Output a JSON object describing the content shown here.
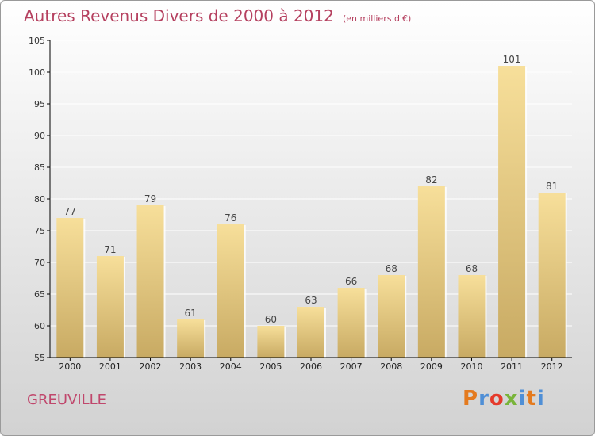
{
  "header": {
    "title": "Autres Revenus Divers de 2000 à 2012",
    "subtitle": "(en milliers d'€)"
  },
  "footer": {
    "place": "GREUVILLE",
    "brand": "Proxiti"
  },
  "colors": {
    "title": "#b5405f",
    "bar_top": "#f7df9a",
    "bar_bottom": "#c8aa63",
    "axis": "#000000",
    "grid": "#ffffff",
    "brand_letters": [
      "#e47a1e",
      "#4f8fd6",
      "#e53a2b",
      "#79b43a",
      "#4f8fd6",
      "#e47a1e",
      "#4f8fd6"
    ]
  },
  "chart_data": {
    "type": "bar",
    "categories": [
      "2000",
      "2001",
      "2002",
      "2003",
      "2004",
      "2005",
      "2006",
      "2007",
      "2008",
      "2009",
      "2010",
      "2011",
      "2012"
    ],
    "values": [
      77,
      71,
      79,
      61,
      76,
      60,
      63,
      66,
      68,
      82,
      68,
      101,
      81
    ],
    "ylim": [
      55,
      105
    ],
    "yticks": [
      55,
      60,
      65,
      70,
      75,
      80,
      85,
      90,
      95,
      100,
      105
    ],
    "grid": "horizontal",
    "data_labels": true,
    "xlabel": "",
    "ylabel": ""
  }
}
